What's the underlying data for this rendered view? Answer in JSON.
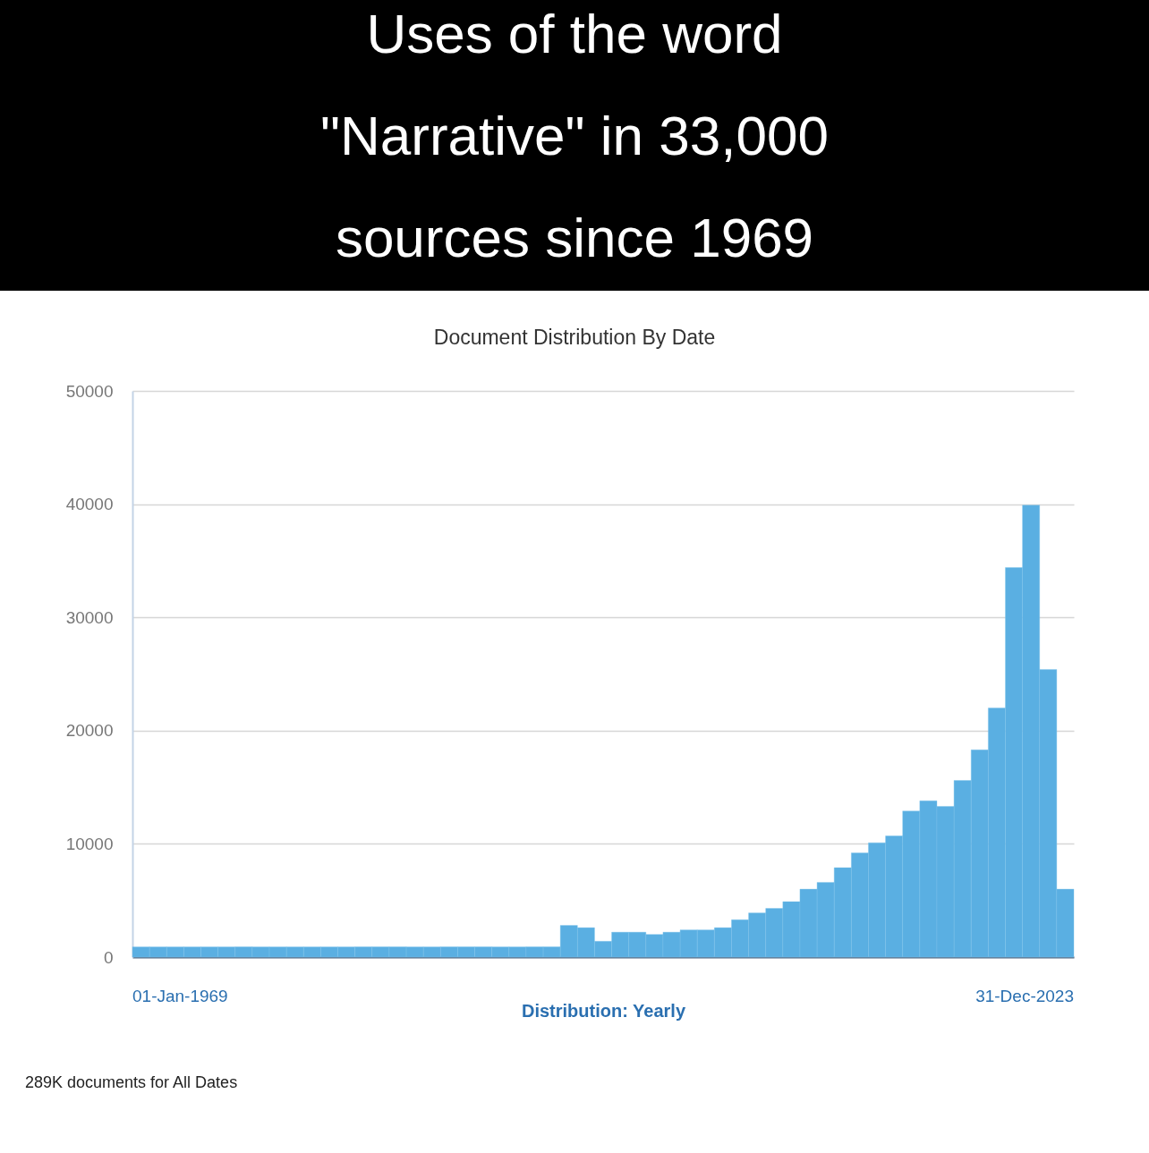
{
  "chart_data": {
    "type": "bar",
    "title": "Uses of the word \"Narrative\" in 33,000 sources since 1969",
    "subtitle": "Document Distribution By Date",
    "xlabel": "Distribution: Yearly",
    "annotations": [
      "01-Jan-1969",
      "31-Dec-2023",
      "289K documents for All Dates"
    ],
    "categories": [
      null,
      null,
      null,
      null,
      null,
      null,
      null,
      null,
      null,
      null,
      null,
      null,
      null,
      null,
      null,
      null,
      null,
      null,
      null,
      null,
      null,
      null,
      null,
      null,
      null,
      null,
      null,
      null,
      null,
      null,
      null,
      null,
      null,
      null,
      null,
      null,
      null,
      null,
      null,
      null,
      null,
      null,
      null,
      null,
      null,
      null,
      null,
      null,
      null,
      null,
      null,
      null,
      null,
      null,
      null
    ],
    "values": [
      900,
      900,
      900,
      900,
      900,
      900,
      900,
      900,
      900,
      900,
      900,
      900,
      900,
      900,
      900,
      900,
      900,
      900,
      900,
      900,
      900,
      900,
      900,
      900,
      900,
      2800,
      2600,
      1400,
      2200,
      2200,
      2000,
      2200,
      2400,
      2400,
      2600,
      3300,
      3900,
      4300,
      4900,
      6000,
      6600,
      7900,
      9200,
      10100,
      10700,
      12900,
      13800,
      13300,
      15600,
      18300,
      22000,
      34400,
      39900,
      25400,
      6000
    ],
    "color": "#5aafe2",
    "ylim": [
      0,
      50000
    ],
    "yticks": [
      0,
      10000,
      20000,
      30000,
      40000,
      50000
    ],
    "grid": "y"
  }
}
